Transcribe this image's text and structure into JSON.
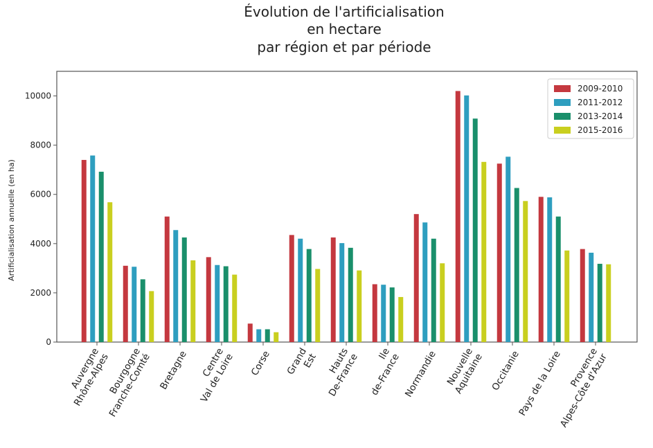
{
  "chart_data": {
    "type": "bar",
    "title": [
      "Évolution de l'artificialisation",
      "en hectare",
      "par région et par période"
    ],
    "xlabel": "",
    "ylabel": "Artificialisation annuelle (en ha)",
    "ylim": [
      0,
      11000
    ],
    "yticks": [
      0,
      2000,
      4000,
      6000,
      8000,
      10000
    ],
    "grid": false,
    "legend_position": "top-right",
    "categories": [
      [
        "Auvergne",
        "Rhône-Alpes"
      ],
      [
        "Bourgogne",
        "Franche-Comté"
      ],
      [
        "Bretagne"
      ],
      [
        "Centre",
        "Val de Loire"
      ],
      [
        "Corse"
      ],
      [
        "Grand",
        "Est"
      ],
      [
        "Hauts",
        "De-France"
      ],
      [
        "Ile",
        "de-France"
      ],
      [
        "Normandie"
      ],
      [
        "Nouvelle",
        "Aquitaine"
      ],
      [
        "Occitanie"
      ],
      [
        "Pays de la Loire"
      ],
      [
        "Provence",
        "Alpes-Côte d'Azur"
      ]
    ],
    "series": [
      {
        "name": "2009-2010",
        "color": "#c4383f",
        "values": [
          7400,
          3100,
          5100,
          3450,
          750,
          4350,
          4250,
          2350,
          5200,
          10200,
          7250,
          5900,
          3780
        ]
      },
      {
        "name": "2011-2012",
        "color": "#2e9ebf",
        "values": [
          7580,
          3060,
          4550,
          3130,
          520,
          4200,
          4020,
          2330,
          4860,
          10020,
          7530,
          5880,
          3630
        ]
      },
      {
        "name": "2013-2014",
        "color": "#1a8f6b",
        "values": [
          6920,
          2550,
          4250,
          3080,
          520,
          3780,
          3830,
          2220,
          4200,
          9080,
          6260,
          5100,
          3180
        ]
      },
      {
        "name": "2015-2016",
        "color": "#c9cf1f",
        "values": [
          5680,
          2070,
          3320,
          2740,
          400,
          2970,
          2910,
          1830,
          3200,
          7320,
          5730,
          3720,
          3160
        ]
      }
    ]
  }
}
